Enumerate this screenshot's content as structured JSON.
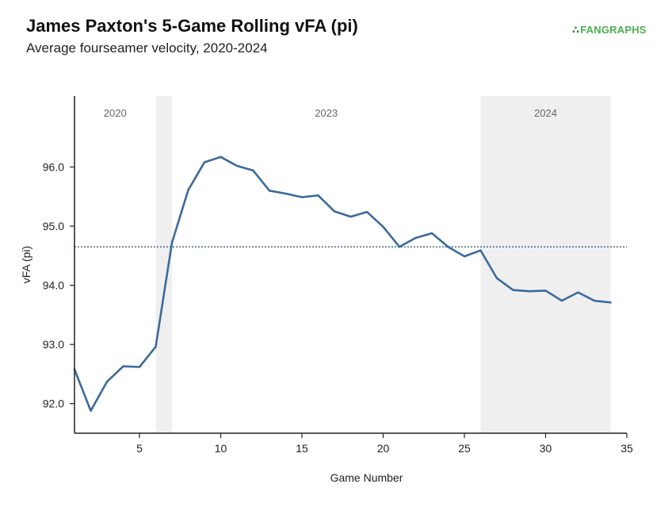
{
  "title": "James Paxton's 5-Game Rolling vFA (pi)",
  "subtitle": "Average fourseamer velocity, 2020-2024",
  "brand": {
    "mark": "∴",
    "name": "FANGRAPHS"
  },
  "colors": {
    "line": "#3b6a9a",
    "reference": "#3b6a9a",
    "band": "#efefef",
    "axis": "#222222",
    "brand": "#4caf50"
  },
  "chart_data": {
    "type": "line",
    "title": "James Paxton's 5-Game Rolling vFA (pi)",
    "subtitle": "Average fourseamer velocity, 2020-2024",
    "xlabel": "Game Number",
    "ylabel": "vFA (pi)",
    "xlim": [
      1,
      35
    ],
    "ylim": [
      91.5,
      97.2
    ],
    "xticks": [
      5,
      10,
      15,
      20,
      25,
      30,
      35
    ],
    "xtick_labels": [
      "5",
      "10",
      "15",
      "20",
      "25",
      "30",
      "35"
    ],
    "yticks": [
      92.0,
      93.0,
      94.0,
      95.0,
      96.0
    ],
    "ytick_labels": [
      "92.0",
      "93.0",
      "94.0",
      "95.0",
      "96.0"
    ],
    "grid": false,
    "reference_line": {
      "y": 94.65,
      "style": "dotted"
    },
    "eras": [
      {
        "label": "2020",
        "start": 1,
        "end": 6,
        "shaded": false
      },
      {
        "label": "",
        "start": 6,
        "end": 7,
        "shaded": true
      },
      {
        "label": "2023",
        "start": 7,
        "end": 26,
        "shaded": false
      },
      {
        "label": "2024",
        "start": 26,
        "end": 34,
        "shaded": true
      }
    ],
    "series": [
      {
        "x": [
          1,
          2,
          3,
          4,
          5,
          6,
          7,
          8,
          9,
          10,
          11,
          12,
          13,
          14,
          15,
          16,
          17,
          18,
          19,
          20,
          21,
          22,
          23,
          24,
          25,
          26,
          27,
          28,
          29,
          30,
          31,
          32,
          33,
          34
        ],
        "values": [
          92.58,
          91.88,
          92.37,
          92.63,
          92.62,
          92.96,
          94.72,
          95.61,
          96.08,
          96.17,
          96.02,
          95.94,
          95.6,
          95.55,
          95.49,
          95.52,
          95.25,
          95.16,
          95.24,
          94.99,
          94.65,
          94.8,
          94.88,
          94.65,
          94.49,
          94.59,
          94.12,
          93.92,
          93.9,
          93.91,
          93.74,
          93.88,
          93.74,
          93.71
        ]
      }
    ]
  }
}
